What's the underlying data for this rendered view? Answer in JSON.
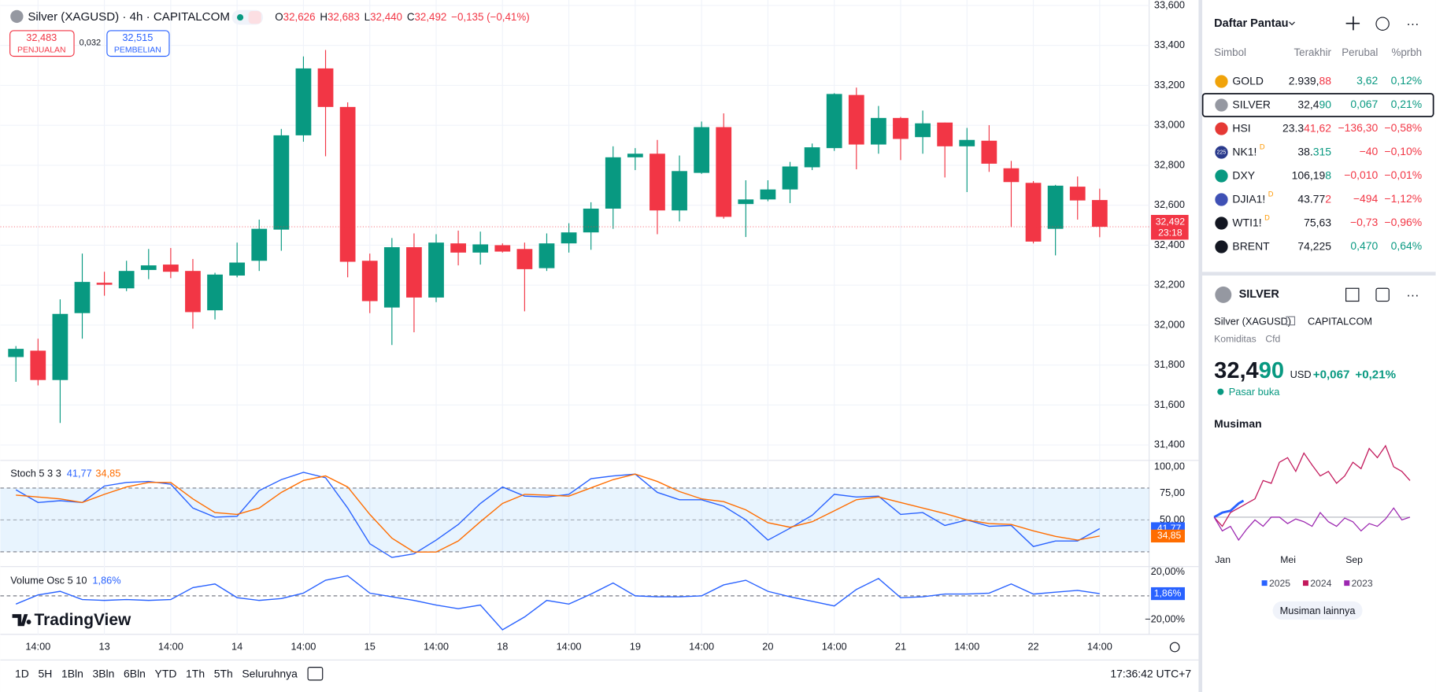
{
  "header": {
    "symbol": "Silver (XAGUSD) · 4h · CAPITALCOM",
    "o_label": "O",
    "open": "32,626",
    "h_label": "H",
    "high": "32,683",
    "l_label": "L",
    "low": "32,440",
    "c_label": "C",
    "close": "32,492",
    "change": "−0,135 (−0,41%)"
  },
  "trade": {
    "sell_price": "32,483",
    "sell_label": "PENJUALAN",
    "spread": "0,032",
    "buy_price": "32,515",
    "buy_label": "PEMBELIAN"
  },
  "logo": "TradingView",
  "chart_data": [
    {
      "type": "candlestick",
      "up_color": "#089981",
      "down_color": "#f23645",
      "grid": true,
      "categories": [
        null,
        "14:00",
        null,
        null,
        "13",
        null,
        null,
        "14:00",
        null,
        null,
        "14",
        null,
        null,
        "14:00",
        null,
        null,
        "15",
        null,
        null,
        "14:00",
        null,
        null,
        "18",
        null,
        null,
        "14:00",
        null,
        null,
        "19",
        null,
        null,
        "14:00",
        null,
        null,
        "20",
        null,
        null,
        "14:00",
        null,
        null,
        "21",
        null,
        null,
        "14:00",
        null,
        null,
        "22",
        null,
        null,
        "14:00"
      ],
      "open": [
        31.84,
        31.872,
        31.725,
        32.06,
        32.212,
        32.184,
        32.276,
        32.303,
        32.271,
        32.074,
        32.248,
        32.322,
        32.478,
        32.95,
        33.285,
        33.092,
        32.322,
        32.088,
        32.39,
        32.138,
        32.409,
        32.363,
        32.4,
        32.381,
        32.285,
        32.409,
        32.464,
        32.583,
        32.84,
        32.858,
        32.574,
        32.762,
        32.991,
        32.606,
        32.629,
        32.679,
        32.79,
        32.886,
        33.152,
        32.904,
        33.037,
        32.941,
        33.014,
        32.895,
        32.923,
        32.785,
        32.712,
        32.482,
        32.693,
        32.626
      ],
      "high": [
        31.895,
        31.932,
        32.129,
        32.358,
        32.267,
        32.322,
        32.381,
        32.386,
        32.331,
        32.262,
        32.413,
        32.528,
        32.982,
        33.345,
        33.377,
        33.115,
        32.358,
        32.436,
        32.459,
        32.455,
        32.473,
        32.468,
        32.409,
        32.413,
        32.459,
        32.51,
        32.615,
        32.895,
        32.886,
        32.927,
        32.849,
        33.019,
        33.06,
        32.725,
        32.725,
        32.817,
        32.909,
        33.161,
        33.189,
        33.097,
        33.042,
        33.074,
        33.014,
        32.987,
        33.001,
        32.822,
        32.721,
        32.702,
        32.744,
        32.683
      ],
      "low": [
        31.716,
        31.698,
        31.51,
        31.932,
        32.147,
        32.17,
        32.23,
        32.235,
        31.982,
        32.028,
        32.239,
        32.271,
        32.372,
        32.918,
        32.845,
        32.239,
        32.06,
        31.9,
        31.964,
        32.115,
        32.299,
        32.303,
        32.363,
        32.069,
        32.271,
        32.363,
        32.377,
        32.482,
        32.776,
        32.455,
        32.519,
        32.757,
        32.533,
        32.441,
        32.62,
        32.611,
        32.776,
        32.872,
        32.78,
        32.858,
        32.826,
        32.858,
        32.739,
        32.666,
        32.767,
        32.491,
        32.409,
        32.349,
        32.528,
        32.44
      ],
      "close": [
        31.881,
        31.725,
        32.056,
        32.216,
        32.202,
        32.271,
        32.299,
        32.267,
        32.065,
        32.253,
        32.313,
        32.482,
        32.95,
        33.285,
        33.092,
        32.317,
        32.12,
        32.39,
        32.138,
        32.413,
        32.363,
        32.404,
        32.368,
        32.28,
        32.409,
        32.464,
        32.583,
        32.84,
        32.858,
        32.574,
        32.771,
        32.991,
        32.542,
        32.629,
        32.679,
        32.794,
        32.89,
        33.157,
        32.904,
        33.037,
        32.932,
        33.01,
        32.895,
        32.927,
        32.808,
        32.716,
        32.418,
        32.698,
        32.624,
        32.492
      ],
      "ylim": [
        31.35,
        33.6
      ],
      "yticks": [
        {
          "value": 33.6,
          "label": "33,600"
        },
        {
          "value": 33.4,
          "label": "33,400"
        },
        {
          "value": 33.2,
          "label": "33,200"
        },
        {
          "value": 33.0,
          "label": "33,000"
        },
        {
          "value": 32.8,
          "label": "32,800"
        },
        {
          "value": 32.6,
          "label": "32,600"
        },
        {
          "value": 32.4,
          "label": "32,400"
        },
        {
          "value": 32.2,
          "label": "32,200"
        },
        {
          "value": 32.0,
          "label": "32,000"
        },
        {
          "value": 31.8,
          "label": "31,800"
        },
        {
          "value": 31.6,
          "label": "31,600"
        },
        {
          "value": 31.4,
          "label": "31,400"
        }
      ],
      "last_label": "32,492",
      "countdown": "23:18"
    },
    {
      "type": "line",
      "title": "Stoch 5 3 3",
      "ylim": [
        7.8,
        106
      ],
      "yticks": [
        {
          "value": 100,
          "label": "100,00"
        },
        {
          "value": 75,
          "label": "75,00"
        },
        {
          "value": 50,
          "label": "50,00"
        }
      ],
      "band": [
        20,
        80
      ],
      "band_color": "#2196f3",
      "series": [
        {
          "name": "41,77",
          "color": "#2962ff",
          "values": [
            78.4,
            66.4,
            68.1,
            66.4,
            81.9,
            85.3,
            86.2,
            83.6,
            61.2,
            52.6,
            53.4,
            77.6,
            87.9,
            94.8,
            89.7,
            61.2,
            27.6,
            14.7,
            18.1,
            31.0,
            45.7,
            65.5,
            81.0,
            72.4,
            71.6,
            74.1,
            88.8,
            91.4,
            93.1,
            75.9,
            69.0,
            69.0,
            62.9,
            50.0,
            31.0,
            42.2,
            54.3,
            74.1,
            71.6,
            72.4,
            55.2,
            56.9,
            44.8,
            50.0,
            44.0,
            44.8,
            25.0,
            30.2,
            30.2,
            41.77
          ]
        },
        {
          "name": "34,85",
          "color": "#ff6d00",
          "values": [
            73.3,
            71.6,
            69.8,
            66.4,
            74.1,
            81.0,
            85.3,
            85.3,
            69.8,
            56.9,
            55.2,
            61.2,
            75.9,
            87.1,
            91.4,
            81.0,
            55.2,
            32.8,
            19.8,
            19.8,
            30.2,
            48.3,
            65.5,
            74.1,
            73.3,
            72.4,
            80.2,
            87.9,
            93.1,
            86.2,
            76.7,
            69.8,
            67.2,
            59.5,
            47.4,
            43.1,
            48.3,
            58.6,
            69.0,
            71.6,
            66.4,
            61.2,
            56.0,
            50.0,
            46.6,
            45.7,
            39.7,
            34.5,
            31.0,
            34.85
          ]
        }
      ]
    },
    {
      "type": "line",
      "title": "Volume Osc 5 10",
      "ylim": [
        -32.3,
        23.8
      ],
      "yticks": [
        {
          "value": 20,
          "label": "20,00%"
        },
        {
          "value": -20,
          "label": "−20,00%"
        }
      ],
      "zero_line": 0,
      "series": [
        {
          "name": "1,86%",
          "color": "#2962ff",
          "values": [
            -6.9,
            0.8,
            3.8,
            -3.1,
            -3.8,
            -3.1,
            -3.8,
            -3.1,
            6.9,
            10.0,
            -1.5,
            -3.8,
            -2.3,
            2.3,
            13.1,
            16.9,
            2.3,
            -0.8,
            -3.8,
            -7.7,
            -10.8,
            -7.7,
            -28.5,
            -17.7,
            -3.8,
            -6.9,
            1.5,
            10.8,
            0,
            -0.8,
            -0.8,
            0,
            9.2,
            13.1,
            3.8,
            -0.8,
            -4.6,
            -8.5,
            5.4,
            14.6,
            -1.5,
            -0.8,
            1.5,
            1.5,
            2.3,
            10.0,
            1.5,
            3.1,
            4.6,
            1.86
          ]
        }
      ]
    },
    {
      "type": "line",
      "title": "Musiman",
      "xlim": [
        0,
        12
      ],
      "ylim": [
        -15,
        42.5
      ],
      "zero_line": 0,
      "xticks": [
        {
          "value": 0,
          "label": "Jan"
        },
        {
          "value": 4,
          "label": "Mei"
        },
        {
          "value": 8,
          "label": "Sep"
        }
      ],
      "series": [
        {
          "name": "2025",
          "color": "#2962ff",
          "x": [
            0,
            0.5,
            1,
            1.5,
            1.8
          ],
          "values": [
            0,
            2.5,
            3.5,
            7.5,
            9
          ]
        },
        {
          "name": "2024",
          "color": "#c2185b",
          "x": [
            0,
            0.5,
            1,
            1.5,
            2,
            2.5,
            3,
            3.5,
            4,
            4.5,
            5,
            5.5,
            6,
            6.5,
            7,
            7.5,
            8,
            8.5,
            9,
            9.5,
            10,
            10.5,
            11,
            11.5,
            12
          ],
          "values": [
            0,
            -5,
            2.5,
            5,
            7.5,
            10,
            20,
            18.5,
            30,
            32.5,
            25,
            35,
            28.5,
            22.5,
            25,
            18.5,
            22.5,
            30,
            26.5,
            37.5,
            32.5,
            39,
            27.5,
            25,
            20
          ]
        },
        {
          "name": "2023",
          "color": "#9c27b0",
          "x": [
            0,
            0.5,
            1,
            1.5,
            2,
            2.5,
            3,
            3.5,
            4,
            4.5,
            5,
            5.5,
            6,
            6.5,
            7,
            7.5,
            8,
            8.5,
            9,
            9.5,
            10,
            10.5,
            11,
            11.5,
            12
          ],
          "values": [
            0,
            -7.5,
            -5,
            -12.5,
            -6.5,
            -1.5,
            -5,
            0,
            0,
            -3.5,
            -1,
            -2.5,
            -5,
            2.5,
            -2.5,
            -5,
            -0.5,
            -2.5,
            -7.5,
            -3.5,
            -5,
            -1,
            5,
            -1.5,
            0
          ]
        }
      ]
    }
  ],
  "toolbar": {
    "ranges": [
      "1D",
      "5H",
      "1Bln",
      "3Bln",
      "6Bln",
      "YTD",
      "1Th",
      "5Th",
      "Seluruhnya"
    ],
    "clock": "17:36:42 UTC+7"
  },
  "watchlist": {
    "title": "Daftar Pantau",
    "columns": [
      "Simbol",
      "Terakhir",
      "Perubal",
      "%prbh"
    ],
    "rows": [
      {
        "symbol": "GOLD",
        "icon_color": "#f0a30a",
        "last": [
          "2.939,",
          "88"
        ],
        "tick": "down",
        "change": "3,62",
        "percent": "0,12%",
        "direction": "up"
      },
      {
        "symbol": "SILVER",
        "icon_color": "#9598a1",
        "last": [
          "32,4",
          "90"
        ],
        "tick": "up",
        "change": "0,067",
        "percent": "0,21%",
        "direction": "up",
        "selected": true
      },
      {
        "symbol": "HSI",
        "icon_color": "#e53935",
        "last": [
          "23.3",
          "41,62"
        ],
        "tick": "down",
        "change": "−136,30",
        "percent": "−0,58%",
        "direction": "down"
      },
      {
        "symbol": "NK1!",
        "icon_color": "#2a3a8c",
        "icon_label": "225",
        "badge": "D",
        "last": [
          "38.",
          "315"
        ],
        "tick": "up",
        "change": "−40",
        "percent": "−0,10%",
        "direction": "down"
      },
      {
        "symbol": "DXY",
        "icon_color": "#089981",
        "last": [
          "106,19",
          "8"
        ],
        "tick": "up",
        "change": "−0,010",
        "percent": "−0,01%",
        "direction": "down"
      },
      {
        "symbol": "DJIA1!",
        "icon_color": "#3f51b5",
        "badge": "D",
        "last": [
          "43.77",
          "2"
        ],
        "tick": "down",
        "change": "−494",
        "percent": "−1,12%",
        "direction": "down"
      },
      {
        "symbol": "WTI1!",
        "icon_color": "#131722",
        "badge": "D",
        "last": [
          "75,63"
        ],
        "change": "−0,73",
        "percent": "−0,96%",
        "direction": "down"
      },
      {
        "symbol": "BRENT",
        "icon_color": "#131722",
        "last": [
          "74,225"
        ],
        "change": "0,470",
        "percent": "0,64%",
        "direction": "up"
      }
    ]
  },
  "detail": {
    "symbol": "SILVER",
    "name": "Silver (XAGUSD)",
    "exchange": "CAPITALCOM",
    "category": "Komiditas",
    "kind": "Cfd",
    "price": [
      "32,4",
      "90"
    ],
    "currency": "USD",
    "change": "+0,067",
    "percent": "+0,21%",
    "status": "Pasar buka",
    "more": "Musiman lainnya"
  }
}
